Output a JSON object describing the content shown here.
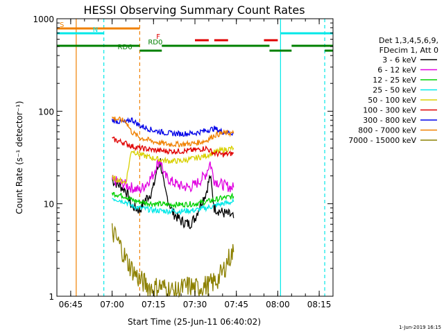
{
  "chart_data": {
    "type": "line",
    "title": "HESSI Observing Summary Count Rates",
    "xlabel": "Start Time (25-Jun-11 06:40:02)",
    "ylabel": "Count Rate (s⁻¹ detector⁻¹)",
    "yscale": "log",
    "ylim": [
      1,
      1000
    ],
    "xlim": [
      "06:40",
      "08:20"
    ],
    "x_ticks": [
      "06:45",
      "07:00",
      "07:15",
      "07:30",
      "07:45",
      "08:00",
      "08:15"
    ],
    "y_ticks": [
      "1",
      "10",
      "100",
      "1000"
    ],
    "grid": false,
    "legend_position": "right",
    "legend_header": [
      "Det 1,3,4,5,6,9,",
      "FDecim 1, Att 0"
    ],
    "x_units": "minutes after 06:40",
    "series": [
      {
        "name": "3 - 6 keV",
        "color": "#000000",
        "x": [
          20,
          25,
          27,
          30,
          32,
          34,
          35,
          36,
          37.5,
          39,
          42,
          45,
          48,
          50,
          52,
          54,
          55.5,
          57,
          60,
          63,
          64
        ],
        "y": [
          18,
          14,
          9.5,
          8.5,
          11,
          13,
          15,
          22,
          29,
          14,
          8,
          6.5,
          6,
          7,
          10,
          13,
          20,
          9,
          8,
          7.5,
          7
        ]
      },
      {
        "name": "6 - 12 keV",
        "color": "#e000e0",
        "x": [
          20,
          25,
          27,
          30,
          32,
          34,
          35,
          36,
          37.5,
          39,
          42,
          45,
          48,
          50,
          52,
          54,
          55.5,
          57,
          60,
          63,
          64
        ],
        "y": [
          18,
          16,
          15,
          14,
          16,
          19,
          21,
          26,
          30,
          20,
          17,
          15.5,
          15,
          16,
          18,
          21,
          28,
          18,
          16,
          15,
          15
        ]
      },
      {
        "name": "12 - 25 keV",
        "color": "#00d000",
        "x": [
          20,
          25,
          27,
          30,
          35,
          40,
          45,
          50,
          54,
          57,
          60,
          64
        ],
        "y": [
          13,
          12,
          11,
          10.5,
          10,
          9.8,
          9.8,
          10,
          10.5,
          11,
          11.5,
          12
        ]
      },
      {
        "name": "25 - 50 keV",
        "color": "#00e8e8",
        "x": [
          20,
          25,
          27,
          30,
          35,
          40,
          45,
          50,
          54,
          57,
          60,
          64
        ],
        "y": [
          11.5,
          10.5,
          9.5,
          9,
          8.5,
          8.3,
          8.3,
          8.5,
          9,
          9.5,
          10,
          10.5
        ]
      },
      {
        "name": "50 - 100 keV",
        "color": "#d8d000",
        "x": [
          20,
          25,
          27,
          30,
          35,
          40,
          45,
          50,
          54,
          57,
          60,
          64
        ],
        "y": [
          19,
          17,
          38,
          34,
          31,
          29,
          29,
          31,
          33,
          36,
          38,
          40
        ]
      },
      {
        "name": "100 - 300 keV",
        "color": "#e00000",
        "x": [
          20,
          25,
          27,
          30,
          35,
          40,
          45,
          50,
          54,
          57,
          60,
          64
        ],
        "y": [
          50,
          45,
          42,
          40,
          38,
          37,
          37,
          38,
          40,
          35,
          34,
          35
        ]
      },
      {
        "name": "300 - 800 keV",
        "color": "#0000e8",
        "x": [
          20,
          25,
          27,
          30,
          35,
          40,
          45,
          50,
          54,
          57,
          60,
          64
        ],
        "y": [
          80,
          75,
          82,
          70,
          62,
          58,
          57,
          58,
          62,
          65,
          60,
          58
        ]
      },
      {
        "name": "800 - 7000 keV",
        "color": "#f08000",
        "x": [
          20,
          25,
          27,
          30,
          35,
          40,
          45,
          50,
          54,
          57,
          60,
          64
        ],
        "y": [
          85,
          78,
          60,
          52,
          47,
          44,
          44,
          45,
          48,
          55,
          58,
          58
        ]
      },
      {
        "name": "7000 - 15000 keV",
        "color": "#8c8000",
        "x": [
          20,
          23,
          25,
          27,
          30,
          33,
          35,
          37,
          40,
          43,
          45,
          48,
          50,
          53,
          55,
          58,
          60,
          62,
          64
        ],
        "y": [
          5,
          3.5,
          2.5,
          2,
          1.5,
          1.3,
          1.2,
          1.3,
          1.2,
          1.1,
          1.2,
          1.3,
          1.2,
          1.3,
          1.3,
          1.5,
          1.8,
          2.5,
          3
        ]
      }
    ],
    "flags": [
      {
        "label": "S",
        "color": "#f08000",
        "segments": [
          [
            0,
            30
          ]
        ]
      },
      {
        "label": "N",
        "color": "#00e8e8",
        "segments": [
          [
            0,
            17
          ],
          [
            81,
            100
          ]
        ]
      },
      {
        "label": "F",
        "color": "#e00000",
        "segments": [
          [
            50,
            55
          ],
          [
            57,
            62
          ],
          [
            75,
            80
          ]
        ]
      },
      {
        "label": "RD0",
        "color": "#008000",
        "segments": [
          [
            0,
            30
          ],
          [
            38,
            77
          ],
          [
            85,
            100
          ]
        ]
      },
      {
        "label": "RD6",
        "color": "#008000",
        "segments": [
          [
            30,
            38
          ],
          [
            77,
            85
          ],
          [
            97,
            100
          ]
        ]
      }
    ],
    "vertical_markers": [
      {
        "color": "#f08000",
        "style": "solid",
        "x": 7
      },
      {
        "color": "#00e8e8",
        "style": "dashed",
        "x": 17
      },
      {
        "color": "#f08000",
        "style": "dashed",
        "x": 30
      },
      {
        "color": "#00e8e8",
        "style": "solid",
        "x": 81
      },
      {
        "color": "#00e8e8",
        "style": "dashed",
        "x": 97
      }
    ]
  },
  "footer_stamp": "1-Jun-2019 16:15"
}
